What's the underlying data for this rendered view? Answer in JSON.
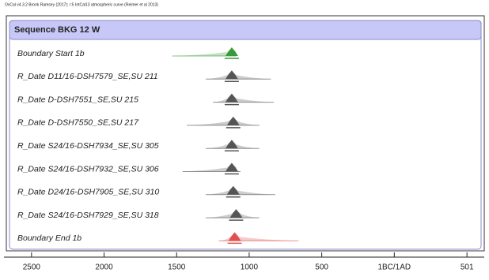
{
  "chart_data": {
    "type": "oxcal",
    "title": "OxCal v4.3.2 Bronk Ramsey (2017); r:5 IntCal13 atmospheric curve (Reimer et al 2013)",
    "group": "Sequence BKG 12 W",
    "xlim": [
      -2690,
      620
    ],
    "xticks": [
      {
        "value": -2500,
        "label": "2500"
      },
      {
        "value": -2000,
        "label": "2000"
      },
      {
        "value": -1500,
        "label": "1500"
      },
      {
        "value": -1000,
        "label": "1000"
      },
      {
        "value": -500,
        "label": "500"
      },
      {
        "value": 0,
        "label": "1BC/1AD"
      },
      501
    ],
    "series": [
      {
        "name": "Boundary Start 1b",
        "color": "#3a9a3a",
        "range": [
          -1530,
          -1090
        ],
        "peak": -1120
      },
      {
        "name": "R_Date D11/16-DSH7579_SE,SU 211",
        "color": "#555555",
        "range": [
          -1300,
          -850
        ],
        "peak": -1120
      },
      {
        "name": "R_Date D-DSH7551_SE,SU 215",
        "color": "#555555",
        "range": [
          -1250,
          -830
        ],
        "peak": -1120
      },
      {
        "name": "R_Date D-DSH7550_SE,SU 217",
        "color": "#555555",
        "range": [
          -1430,
          -930
        ],
        "peak": -1110
      },
      {
        "name": "R_Date S24/16-DSH7934_SE,SU 305",
        "color": "#555555",
        "range": [
          -1300,
          -930
        ],
        "peak": -1120
      },
      {
        "name": "R_Date S24/16-DSH7932_SE,SU 306",
        "color": "#555555",
        "range": [
          -1460,
          -1060
        ],
        "peak": -1120
      },
      {
        "name": "R_Date D24/16-DSH7905_SE,SU 310",
        "color": "#555555",
        "range": [
          -1300,
          -820
        ],
        "peak": -1110
      },
      {
        "name": "R_Date S24/16-DSH7929_SE,SU 318",
        "color": "#555555",
        "range": [
          -1300,
          -930
        ],
        "peak": -1090
      },
      {
        "name": "Boundary End 1b",
        "color": "#e05050",
        "range": [
          -1210,
          -660
        ],
        "peak": -1100
      }
    ]
  }
}
